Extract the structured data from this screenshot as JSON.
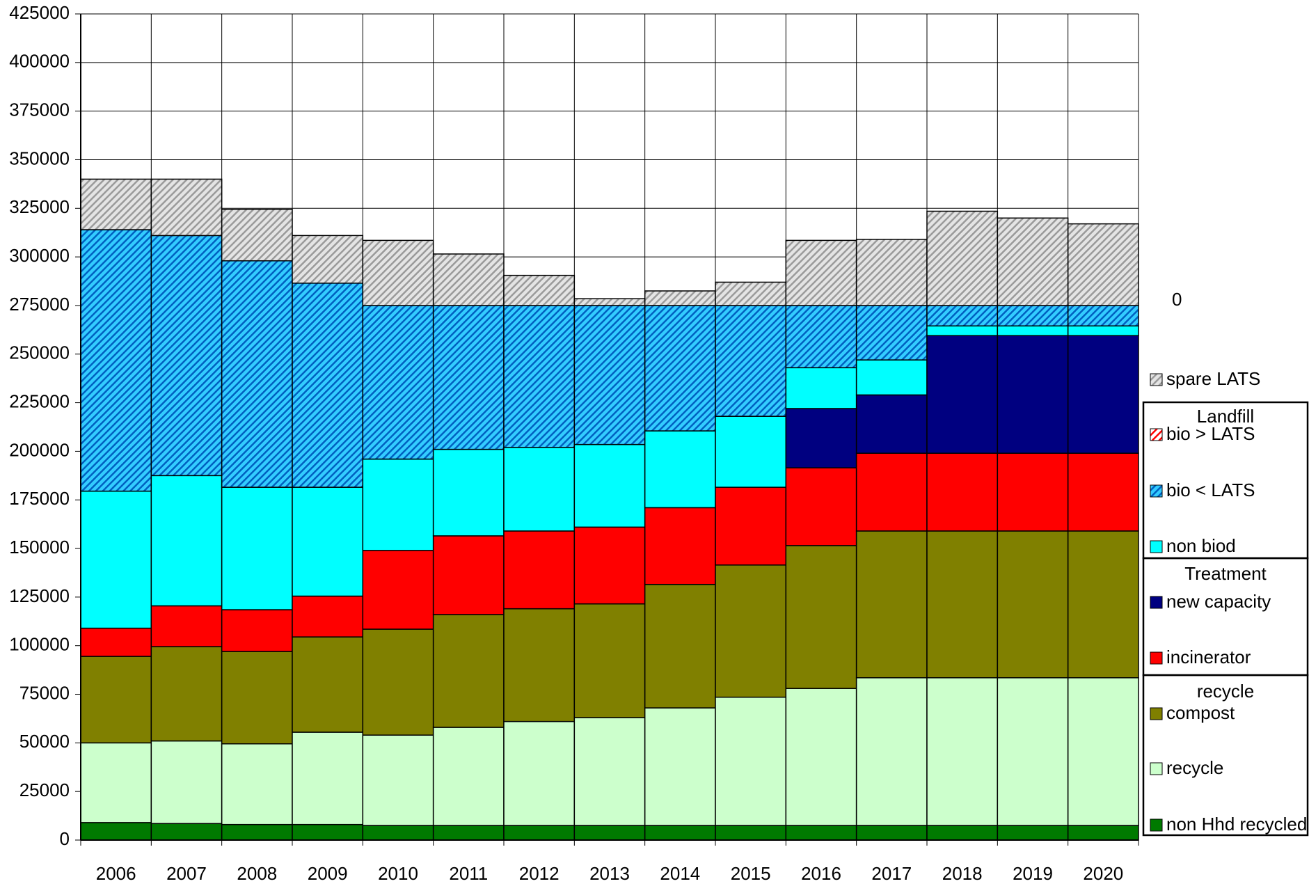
{
  "chart_data": {
    "type": "stacked_bar",
    "categories": [
      "2006",
      "2007",
      "2008",
      "2009",
      "2010",
      "2011",
      "2012",
      "2013",
      "2014",
      "2015",
      "2016",
      "2017",
      "2018",
      "2019",
      "2020"
    ],
    "series": [
      {
        "name": "non Hhd recycled",
        "color": "#007a00",
        "values": [
          9000,
          8500,
          8000,
          8000,
          7500,
          7500,
          7500,
          7500,
          7500,
          7500,
          7500,
          7500,
          7500,
          7500,
          7500
        ]
      },
      {
        "name": "recycle",
        "color": "#ccffcc",
        "values": [
          41000,
          42500,
          41500,
          47500,
          46500,
          50500,
          53500,
          55500,
          60500,
          66000,
          70500,
          76000,
          76000,
          76000,
          76000
        ]
      },
      {
        "name": "compost",
        "color": "#808000",
        "values": [
          44500,
          48500,
          47500,
          49000,
          54500,
          58000,
          58000,
          58500,
          63500,
          68000,
          73500,
          75500,
          75500,
          75500,
          75500
        ]
      },
      {
        "name": "incinerator",
        "color": "#ff0000",
        "values": [
          14500,
          21000,
          21500,
          21000,
          40500,
          40500,
          40000,
          39500,
          39500,
          40000,
          40000,
          40000,
          40000,
          40000,
          40000
        ]
      },
      {
        "name": "new capacity",
        "color": "#000080",
        "values": [
          0,
          0,
          0,
          0,
          0,
          0,
          0,
          0,
          0,
          0,
          30500,
          30000,
          60500,
          60500,
          60500
        ]
      },
      {
        "name": "non biod",
        "color": "#00ffff",
        "values": [
          70500,
          67000,
          63000,
          56000,
          47000,
          44500,
          43000,
          42500,
          39500,
          36500,
          21000,
          18000,
          5000,
          5000,
          5000
        ]
      },
      {
        "name": "bio < LATS",
        "color": "#33ccff",
        "hatch": "#0060c0",
        "values": [
          134500,
          123500,
          116500,
          105000,
          79000,
          74000,
          73000,
          71500,
          64500,
          57000,
          32000,
          28000,
          10500,
          10500,
          10500
        ]
      },
      {
        "name": "bio > LATS",
        "color": "#ffffff",
        "hatch": "#ff0000",
        "values": [
          0,
          0,
          0,
          0,
          0,
          0,
          0,
          0,
          0,
          0,
          0,
          0,
          0,
          0,
          0
        ]
      },
      {
        "name": "spare LATS",
        "color": "#e4e4e4",
        "hatch": "#9a9a9a",
        "values": [
          26000,
          29000,
          26500,
          24500,
          33500,
          26500,
          15500,
          3500,
          7500,
          12000,
          33500,
          34000,
          48500,
          45000,
          42000
        ]
      }
    ],
    "legend_groups": [
      {
        "title": "Landfill",
        "members": [
          "bio > LATS",
          "bio < LATS",
          "non biod"
        ]
      },
      {
        "title": "Treatment",
        "members": [
          "new capacity",
          "incinerator"
        ]
      },
      {
        "title": "recycle",
        "members": [
          "compost",
          "recycle",
          "non Hhd recycled"
        ]
      }
    ],
    "annotation": "0",
    "ylim": [
      0,
      425000
    ],
    "yticks": [
      0,
      25000,
      50000,
      75000,
      100000,
      125000,
      150000,
      175000,
      200000,
      225000,
      250000,
      275000,
      300000,
      325000,
      350000,
      375000,
      400000,
      425000
    ],
    "grid": true
  }
}
